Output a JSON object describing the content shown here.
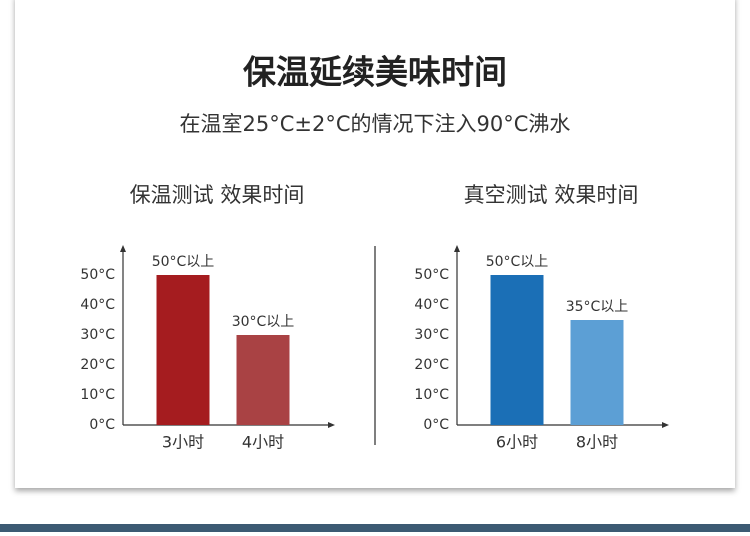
{
  "header": {
    "title": "保温延续美味时间",
    "subtitle": "在温室25°C±2°C的情况下注入90°C沸水"
  },
  "chart_data": [
    {
      "type": "bar",
      "title": "保温测试  效果时间",
      "categories": [
        "3小时",
        "4小时"
      ],
      "values": [
        50,
        30
      ],
      "value_labels": [
        "50°C以上",
        "30°C以上"
      ],
      "colors": [
        "#a51c1f",
        "#a94244"
      ],
      "ylim": [
        0,
        57
      ],
      "yticks": [
        {
          "value": 0,
          "label": "0°C"
        },
        {
          "value": 10,
          "label": "10°C"
        },
        {
          "value": 20,
          "label": "20°C"
        },
        {
          "value": 30,
          "label": "30°C"
        },
        {
          "value": 40,
          "label": "40°C"
        },
        {
          "value": 50,
          "label": "50°C"
        }
      ]
    },
    {
      "type": "bar",
      "title": "真空测试  效果时间",
      "categories": [
        "6小时",
        "8小时"
      ],
      "values": [
        50,
        35
      ],
      "value_labels": [
        "50°C以上",
        "35°C以上"
      ],
      "colors": [
        "#1b6fb6",
        "#5c9fd5"
      ],
      "ylim": [
        0,
        57
      ],
      "yticks": [
        {
          "value": 0,
          "label": "0°C"
        },
        {
          "value": 10,
          "label": "10°C"
        },
        {
          "value": 20,
          "label": "20°C"
        },
        {
          "value": 30,
          "label": "30°C"
        },
        {
          "value": 40,
          "label": "40°C"
        },
        {
          "value": 50,
          "label": "50°C"
        }
      ]
    }
  ]
}
